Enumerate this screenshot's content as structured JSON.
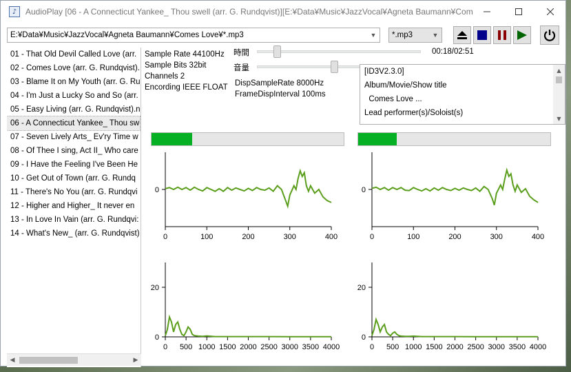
{
  "window": {
    "title": "AudioPlay [06 - A Connecticut Yankee_ Thou swell (arr. G. Rundqvist)][E:¥Data¥Music¥JazzVocal¥Agneta Baumann¥Come..."
  },
  "toolbar": {
    "path_value": "E:¥Data¥Music¥JazzVocal¥Agneta Baumann¥Comes Love¥*.mp3",
    "ext_value": "*.mp3"
  },
  "playlist": {
    "items": [
      "01 - That Old Devil Called Love (arr.",
      "02 - Comes Love (arr. G. Rundqvist).",
      "03 - Blame It on My Youth (arr. G. Ru",
      "04 - I'm Just a Lucky So and So (arr.",
      "05 - Easy Living (arr. G. Rundqvist).n",
      "06 - A Connecticut Yankee_ Thou sw",
      "07 - Seven Lively Arts_ Ev'ry Time w",
      "08 - Of Thee I sing, Act II_ Who care",
      "09 - I Have the Feeling I've Been He",
      "10 - Get Out of Town (arr. G. Rundq",
      "11 - There's No You (arr. G. Rundqvi",
      "12 - Higher and Higher_ It never en",
      "13 - In Love In Vain (arr. G. Rundqvi:",
      "14 - What's New_ (arr. G. Rundqvist)"
    ],
    "selected_index": 5
  },
  "info": {
    "sample_rate": "Sample Rate 44100Hz",
    "sample_bits": "Sample Bits 32bit",
    "channels": "Channels 2",
    "encoding": "Encording IEEE FLOAT",
    "time_label": "時間",
    "volume_label": "音量",
    "time_position": 0.106,
    "volume_level": 0.47,
    "time_readout": "00:18/02:51",
    "disp_sample_rate": "DispSampleRate    8000Hz",
    "frame_disp_interval": "FrameDispInterval 100ms"
  },
  "tags": {
    "lines": [
      "[ID3V2.3.0]",
      "Album/Movie/Show title",
      "  Comes Love ...",
      "Lead performer(s)/Soloist(s)"
    ]
  },
  "levels": {
    "left": 0.21,
    "right": 0.2,
    "color": "#06b025"
  },
  "chart_data": [
    {
      "type": "line",
      "title": "",
      "xlabel": "",
      "ylabel": "",
      "xlim": [
        0,
        400
      ],
      "ylim": [
        -1,
        1
      ],
      "xticks": [
        0,
        100,
        200,
        300,
        400
      ],
      "yticks": [
        0
      ],
      "color": "#5a9e1b",
      "x": [
        0,
        10,
        20,
        30,
        40,
        50,
        60,
        70,
        80,
        90,
        100,
        110,
        120,
        130,
        140,
        150,
        160,
        170,
        180,
        190,
        200,
        210,
        220,
        230,
        240,
        250,
        260,
        270,
        280,
        290,
        295,
        300,
        310,
        315,
        320,
        325,
        330,
        335,
        340,
        345,
        350,
        360,
        370,
        380,
        390,
        400
      ],
      "y": [
        0.02,
        0.05,
        0.0,
        0.06,
        0.0,
        0.05,
        -0.02,
        0.06,
        0.0,
        -0.04,
        0.05,
        0.0,
        -0.05,
        0.02,
        -0.05,
        0.05,
        -0.02,
        0.04,
        0.0,
        -0.04,
        0.03,
        -0.03,
        0.05,
        0.0,
        -0.02,
        0.04,
        -0.05,
        0.1,
        0.0,
        -0.3,
        -0.45,
        -0.15,
        0.1,
        0.0,
        0.3,
        0.5,
        0.35,
        0.45,
        0.1,
        -0.05,
        0.1,
        -0.1,
        0.0,
        -0.2,
        -0.3,
        -0.35
      ]
    },
    {
      "type": "line",
      "title": "",
      "xlabel": "",
      "ylabel": "",
      "xlim": [
        0,
        400
      ],
      "ylim": [
        -1,
        1
      ],
      "xticks": [
        0,
        100,
        200,
        300,
        400
      ],
      "yticks": [
        0
      ],
      "color": "#5a9e1b",
      "x": [
        0,
        10,
        20,
        30,
        40,
        50,
        60,
        70,
        80,
        90,
        100,
        110,
        120,
        130,
        140,
        150,
        160,
        170,
        180,
        190,
        200,
        210,
        220,
        230,
        240,
        250,
        260,
        270,
        280,
        290,
        295,
        300,
        310,
        315,
        320,
        325,
        330,
        335,
        340,
        345,
        350,
        360,
        370,
        380,
        390,
        400
      ],
      "y": [
        0.03,
        0.06,
        0.0,
        0.05,
        -0.02,
        0.05,
        0.0,
        0.05,
        -0.02,
        -0.03,
        0.05,
        0.0,
        -0.04,
        0.02,
        -0.04,
        0.04,
        -0.02,
        0.05,
        0.0,
        -0.03,
        0.03,
        -0.02,
        0.04,
        0.0,
        -0.03,
        0.04,
        -0.05,
        0.08,
        0.0,
        -0.25,
        -0.42,
        -0.1,
        0.12,
        0.0,
        0.28,
        0.52,
        0.35,
        0.42,
        0.12,
        -0.05,
        0.12,
        -0.08,
        0.02,
        -0.18,
        -0.28,
        -0.35
      ]
    },
    {
      "type": "line",
      "title": "",
      "xlabel": "",
      "ylabel": "",
      "xlim": [
        0,
        4000
      ],
      "ylim": [
        0,
        30
      ],
      "xticks": [
        0,
        500,
        1000,
        1500,
        2000,
        2500,
        3000,
        3500,
        4000
      ],
      "yticks": [
        0,
        20
      ],
      "color": "#5a9e1b",
      "x": [
        0,
        50,
        100,
        150,
        200,
        250,
        300,
        350,
        400,
        450,
        500,
        550,
        600,
        650,
        700,
        800,
        900,
        1000,
        1200,
        1500,
        2000,
        2500,
        3000,
        3500,
        4000
      ],
      "y": [
        0.5,
        3,
        8,
        6,
        2,
        5,
        6,
        3,
        1,
        0.5,
        2,
        4,
        3,
        1,
        0.5,
        0.3,
        0.2,
        0.4,
        0.1,
        0.1,
        0.1,
        0.1,
        0.05,
        0.05,
        0.05
      ]
    },
    {
      "type": "line",
      "title": "",
      "xlabel": "",
      "ylabel": "",
      "xlim": [
        0,
        4000
      ],
      "ylim": [
        0,
        30
      ],
      "xticks": [
        0,
        500,
        1000,
        1500,
        2000,
        2500,
        3000,
        3500,
        4000
      ],
      "yticks": [
        0,
        20
      ],
      "color": "#5a9e1b",
      "x": [
        0,
        50,
        100,
        150,
        200,
        250,
        300,
        350,
        400,
        450,
        500,
        550,
        600,
        650,
        700,
        800,
        900,
        1000,
        1200,
        1500,
        2000,
        2500,
        3000,
        3500,
        4000
      ],
      "y": [
        0.5,
        3,
        7,
        5,
        2,
        4,
        5,
        2,
        1,
        0.5,
        1.5,
        2,
        1,
        0.5,
        0.3,
        0.2,
        0.2,
        0.3,
        0.1,
        0.1,
        0.1,
        0.05,
        0.05,
        0.05,
        0.05
      ]
    }
  ]
}
